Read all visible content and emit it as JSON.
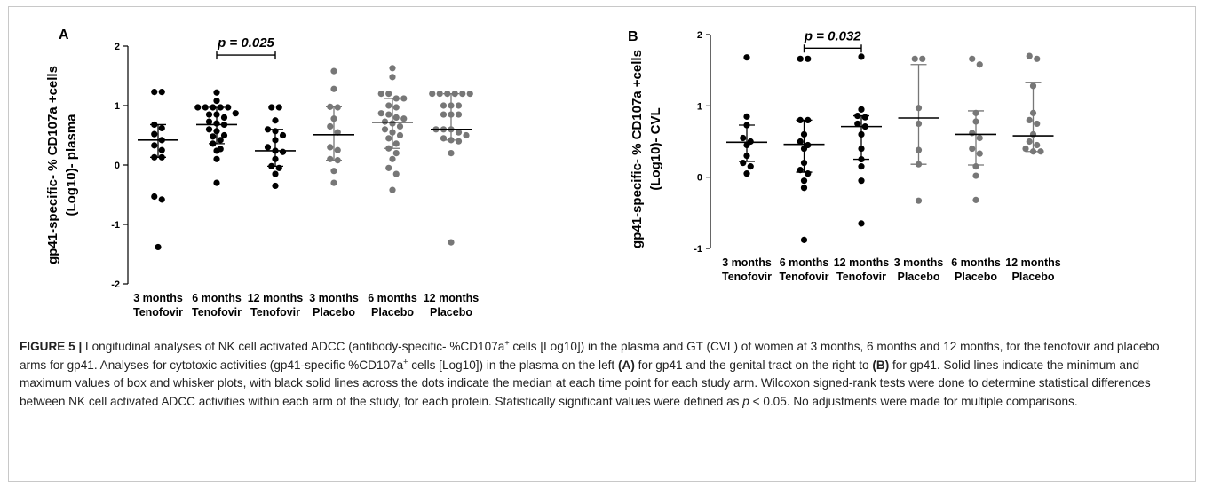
{
  "caption": {
    "label": "FIGURE 5 |",
    "parts": [
      {
        "t": " Longitudinal analyses of NK cell activated ADCC (antibody-specific- %CD107a"
      },
      {
        "t": "+",
        "sup": true
      },
      {
        "t": " cells [Log10]) in the plasma and GT (CVL) of women at 3 months, 6 months and 12 months, for the tenofovir and placebo arms for gp41. Analyses for cytotoxic activities (gp41-specific %CD107a"
      },
      {
        "t": "+",
        "sup": true
      },
      {
        "t": " cells [Log10]) in the plasma on the left "
      },
      {
        "t": "(A)",
        "b": true
      },
      {
        "t": " for gp41 and the genital tract on the right to "
      },
      {
        "t": "(B)",
        "b": true
      },
      {
        "t": " for gp41. Solid lines indicate the minimum and maximum values of box and whisker plots, with black solid lines across the dots indicate the median at each time point for each study arm. Wilcoxon signed-rank tests were done to determine statistical differences between NK cell activated ADCC activities within each arm of the study, for each protein. Statistically significant values were defined as "
      },
      {
        "t": "p",
        "i": true
      },
      {
        "t": " < 0.05. No adjustments were made for multiple comparisons."
      }
    ]
  },
  "chart_data": [
    {
      "type": "scatter",
      "panel_label": "A",
      "ylabel_line1": "gp41-specific- % CD107a +cells",
      "ylabel_line2": "(Log10)- plasma",
      "ylim": [
        -2,
        2
      ],
      "yticks": [
        -2,
        -1,
        0,
        1,
        2
      ],
      "ytick_labels": [
        "-2",
        "-1",
        "0",
        "1",
        "2"
      ],
      "groups": [
        {
          "line1": "3 months",
          "line2": "Tenofovir",
          "color": "#000000",
          "median": 0.42,
          "range": [
            0.13,
            0.68
          ],
          "points": [
            1.23,
            1.23,
            0.68,
            0.62,
            0.52,
            0.42,
            0.33,
            0.25,
            0.13,
            0.13,
            -0.53,
            -0.58,
            -1.38
          ]
        },
        {
          "line1": "6 months",
          "line2": "Tenofovir",
          "color": "#000000",
          "median": 0.68,
          "range": [
            0.36,
            0.97
          ],
          "points": [
            1.22,
            1.08,
            0.97,
            0.97,
            0.97,
            0.97,
            0.97,
            0.87,
            0.85,
            0.85,
            0.8,
            0.73,
            0.7,
            0.68,
            0.6,
            0.57,
            0.5,
            0.48,
            0.42,
            0.36,
            0.27,
            0.24,
            0.1,
            -0.3
          ]
        },
        {
          "line1": "12 months",
          "line2": "Tenofovir",
          "color": "#000000",
          "median": 0.24,
          "range": [
            -0.02,
            0.6
          ],
          "points": [
            0.97,
            0.97,
            0.75,
            0.6,
            0.57,
            0.5,
            0.42,
            0.3,
            0.24,
            0.22,
            0.1,
            -0.02,
            -0.05,
            -0.15,
            -0.35
          ]
        },
        {
          "line1": "3 months",
          "line2": "Placebo",
          "color": "#777777",
          "median": 0.51,
          "range": [
            0.08,
            0.98
          ],
          "points": [
            1.58,
            1.28,
            0.98,
            0.97,
            0.78,
            0.65,
            0.55,
            0.3,
            0.25,
            0.1,
            0.08,
            -0.1,
            -0.3
          ]
        },
        {
          "line1": "6 months",
          "line2": "Placebo",
          "color": "#777777",
          "median": 0.72,
          "range": [
            0.28,
            1.12
          ],
          "points": [
            1.63,
            1.48,
            1.2,
            1.2,
            1.12,
            1.12,
            1.0,
            0.97,
            0.87,
            0.85,
            0.8,
            0.78,
            0.73,
            0.7,
            0.65,
            0.6,
            0.55,
            0.5,
            0.45,
            0.36,
            0.28,
            0.2,
            0.1,
            -0.05,
            -0.15,
            -0.42
          ]
        },
        {
          "line1": "12 months",
          "line2": "Placebo",
          "color": "#777777",
          "median": 0.6,
          "range": [
            0.42,
            1.2
          ],
          "points": [
            1.2,
            1.2,
            1.2,
            1.2,
            1.2,
            1.2,
            1.0,
            1.0,
            1.0,
            0.85,
            0.85,
            0.85,
            0.6,
            0.6,
            0.6,
            0.55,
            0.5,
            0.45,
            0.42,
            0.4,
            0.2,
            -1.3
          ]
        }
      ],
      "annotation": {
        "text": "p = 0.025",
        "from_group": 1,
        "to_group": 2,
        "y": 1.85
      }
    },
    {
      "type": "scatter",
      "panel_label": "B",
      "ylabel_line1": "gp41-specific- % CD107a +cells",
      "ylabel_line2": "(Log10)- CVL",
      "ylim": [
        -1,
        2
      ],
      "yticks": [
        -1,
        0,
        1,
        2
      ],
      "ytick_labels": [
        "-1",
        "0",
        "1",
        "2"
      ],
      "groups": [
        {
          "line1": "3 months",
          "line2": "Tenofovir",
          "color": "#000000",
          "median": 0.49,
          "range": [
            0.22,
            0.73
          ],
          "points": [
            1.68,
            0.85,
            0.73,
            0.55,
            0.5,
            0.45,
            0.3,
            0.2,
            0.15,
            0.05
          ]
        },
        {
          "line1": "6 months",
          "line2": "Tenofovir",
          "color": "#000000",
          "median": 0.46,
          "range": [
            0.07,
            0.8
          ],
          "points": [
            1.66,
            1.66,
            0.8,
            0.8,
            0.6,
            0.5,
            0.45,
            0.4,
            0.2,
            0.1,
            0.05,
            -0.05,
            -0.15,
            -0.88
          ]
        },
        {
          "line1": "12 months",
          "line2": "Tenofovir",
          "color": "#000000",
          "median": 0.71,
          "range": [
            0.25,
            0.86
          ],
          "points": [
            1.69,
            0.95,
            0.86,
            0.84,
            0.75,
            0.71,
            0.6,
            0.4,
            0.25,
            0.15,
            -0.05,
            -0.65
          ]
        },
        {
          "line1": "3 months",
          "line2": "Placebo",
          "color": "#777777",
          "median": 0.83,
          "range": [
            0.18,
            1.58
          ],
          "points": [
            1.66,
            1.66,
            0.97,
            0.75,
            0.38,
            0.18,
            -0.33
          ]
        },
        {
          "line1": "6 months",
          "line2": "Placebo",
          "color": "#777777",
          "median": 0.6,
          "range": [
            0.17,
            0.93
          ],
          "points": [
            1.66,
            1.58,
            0.9,
            0.78,
            0.62,
            0.55,
            0.4,
            0.33,
            0.15,
            0.02,
            -0.32
          ]
        },
        {
          "line1": "12 months",
          "line2": "Placebo",
          "color": "#777777",
          "median": 0.58,
          "range": [
            0.36,
            1.33
          ],
          "points": [
            1.7,
            1.66,
            1.28,
            0.9,
            0.8,
            0.75,
            0.6,
            0.5,
            0.45,
            0.4,
            0.36,
            0.36
          ]
        }
      ],
      "annotation": {
        "text": "p = 0.032",
        "from_group": 1,
        "to_group": 2,
        "y": 1.81
      }
    }
  ]
}
